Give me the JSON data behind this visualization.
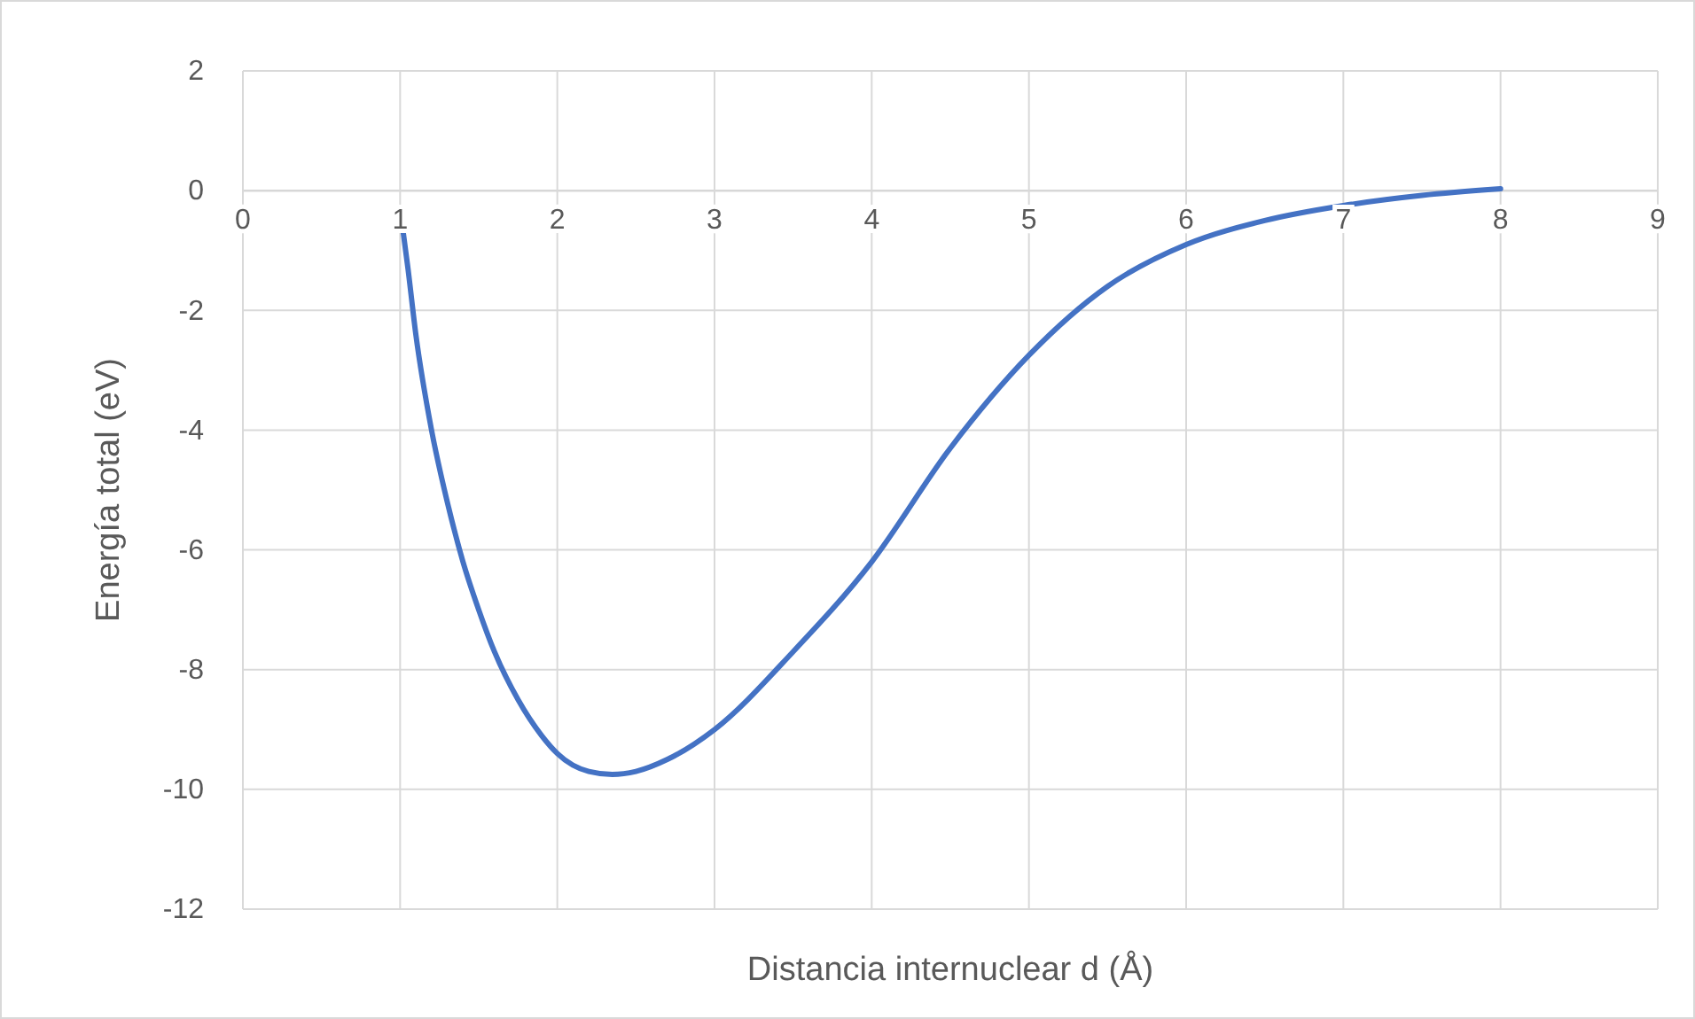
{
  "chart_data": {
    "type": "line",
    "xlabel": "Distancia internuclear d (Å)",
    "ylabel": "Energía total (eV)",
    "xlim": [
      0,
      9
    ],
    "xticks": [
      0,
      1,
      2,
      3,
      4,
      5,
      6,
      7,
      8,
      9
    ],
    "ylim": [
      -12,
      2
    ],
    "yticks": [
      -12,
      -10,
      -8,
      -6,
      -4,
      -2,
      0,
      2
    ],
    "grid": true,
    "marker": "none",
    "line_style": "solid",
    "series": [
      {
        "color": "#4472c4",
        "x": [
          1,
          1.05,
          1.1,
          1.2,
          1.3,
          1.4,
          1.5,
          1.6,
          1.75,
          1.9,
          2,
          2.2,
          2.35,
          2.5,
          2.7,
          3,
          3.5,
          4,
          4.5,
          5,
          5.5,
          6,
          6.5,
          7,
          7.5,
          8
        ],
        "values": [
          -0.3,
          -1.3,
          -2.4,
          -4.0,
          -5.2,
          -6.2,
          -7.0,
          -7.7,
          -8.5,
          -9.1,
          -9.4,
          -9.7,
          -9.75,
          -9.7,
          -9.5,
          -9.0,
          -7.7,
          -6.2,
          -4.3,
          -2.75,
          -1.6,
          -0.9,
          -0.5,
          -0.25,
          -0.08,
          0.03
        ]
      }
    ]
  }
}
